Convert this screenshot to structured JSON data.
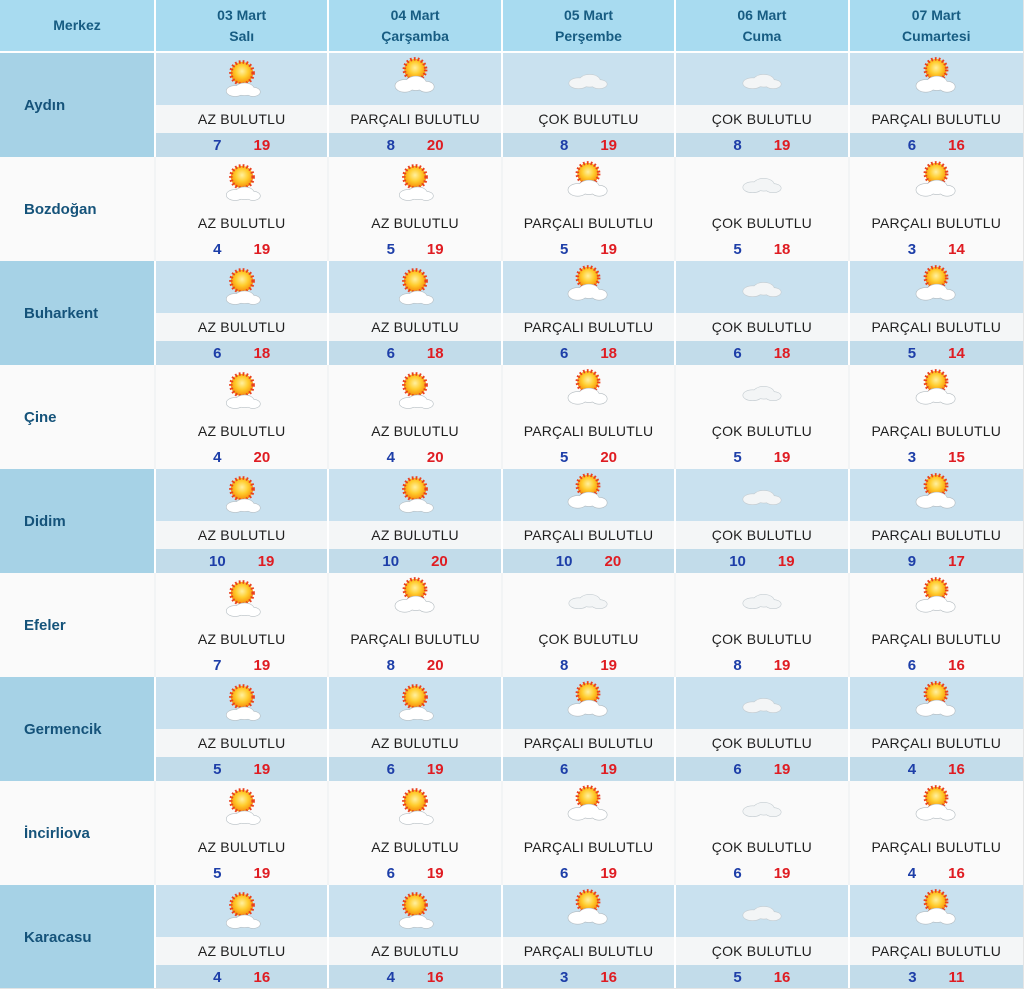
{
  "colors": {
    "header_bg": "#a8dbf0",
    "header_text": "#175c82",
    "row_blue_city_bg": "#a6d2e6",
    "row_blue_icon_bg": "#c9e1ef",
    "row_blue_condition_bg": "#f4f6f7",
    "row_blue_temp_bg": "#c2dcea",
    "row_white_bg": "#fafafa",
    "city_text": "#15537a",
    "condition_text": "#1f1f1f",
    "min_temp_color": "#1d3ea8",
    "max_temp_color": "#df1c22"
  },
  "icons": {
    "az_bulutlu": "sun-small-cloud",
    "parcali_bulutlu": "sun-cloud",
    "cok_bulutlu": "cloud"
  },
  "table": {
    "header": {
      "merkez_label": "Merkez",
      "days": [
        {
          "date": "03 Mart",
          "weekday": "Salı"
        },
        {
          "date": "04 Mart",
          "weekday": "Çarşamba"
        },
        {
          "date": "05 Mart",
          "weekday": "Perşembe"
        },
        {
          "date": "06 Mart",
          "weekday": "Cuma"
        },
        {
          "date": "07 Mart",
          "weekday": "Cumartesi"
        }
      ]
    },
    "rows": [
      {
        "city": "Aydın",
        "forecasts": [
          {
            "icon": "sun-small-cloud",
            "condition": "AZ BULUTLU",
            "min": 7,
            "max": 19
          },
          {
            "icon": "sun-cloud",
            "condition": "PARÇALI BULUTLU",
            "min": 8,
            "max": 20
          },
          {
            "icon": "cloud",
            "condition": "ÇOK BULUTLU",
            "min": 8,
            "max": 19
          },
          {
            "icon": "cloud",
            "condition": "ÇOK BULUTLU",
            "min": 8,
            "max": 19
          },
          {
            "icon": "sun-cloud",
            "condition": "PARÇALI BULUTLU",
            "min": 6,
            "max": 16
          }
        ]
      },
      {
        "city": "Bozdoğan",
        "forecasts": [
          {
            "icon": "sun-small-cloud",
            "condition": "AZ BULUTLU",
            "min": 4,
            "max": 19
          },
          {
            "icon": "sun-small-cloud",
            "condition": "AZ BULUTLU",
            "min": 5,
            "max": 19
          },
          {
            "icon": "sun-cloud",
            "condition": "PARÇALI BULUTLU",
            "min": 5,
            "max": 19
          },
          {
            "icon": "cloud",
            "condition": "ÇOK BULUTLU",
            "min": 5,
            "max": 18
          },
          {
            "icon": "sun-cloud",
            "condition": "PARÇALI BULUTLU",
            "min": 3,
            "max": 14
          }
        ]
      },
      {
        "city": "Buharkent",
        "forecasts": [
          {
            "icon": "sun-small-cloud",
            "condition": "AZ BULUTLU",
            "min": 6,
            "max": 18
          },
          {
            "icon": "sun-small-cloud",
            "condition": "AZ BULUTLU",
            "min": 6,
            "max": 18
          },
          {
            "icon": "sun-cloud",
            "condition": "PARÇALI BULUTLU",
            "min": 6,
            "max": 18
          },
          {
            "icon": "cloud",
            "condition": "ÇOK BULUTLU",
            "min": 6,
            "max": 18
          },
          {
            "icon": "sun-cloud",
            "condition": "PARÇALI BULUTLU",
            "min": 5,
            "max": 14
          }
        ]
      },
      {
        "city": "Çine",
        "forecasts": [
          {
            "icon": "sun-small-cloud",
            "condition": "AZ BULUTLU",
            "min": 4,
            "max": 20
          },
          {
            "icon": "sun-small-cloud",
            "condition": "AZ BULUTLU",
            "min": 4,
            "max": 20
          },
          {
            "icon": "sun-cloud",
            "condition": "PARÇALI BULUTLU",
            "min": 5,
            "max": 20
          },
          {
            "icon": "cloud",
            "condition": "ÇOK BULUTLU",
            "min": 5,
            "max": 19
          },
          {
            "icon": "sun-cloud",
            "condition": "PARÇALI BULUTLU",
            "min": 3,
            "max": 15
          }
        ]
      },
      {
        "city": "Didim",
        "forecasts": [
          {
            "icon": "sun-small-cloud",
            "condition": "AZ BULUTLU",
            "min": 10,
            "max": 19
          },
          {
            "icon": "sun-small-cloud",
            "condition": "AZ BULUTLU",
            "min": 10,
            "max": 20
          },
          {
            "icon": "sun-cloud",
            "condition": "PARÇALI BULUTLU",
            "min": 10,
            "max": 20
          },
          {
            "icon": "cloud",
            "condition": "ÇOK BULUTLU",
            "min": 10,
            "max": 19
          },
          {
            "icon": "sun-cloud",
            "condition": "PARÇALI BULUTLU",
            "min": 9,
            "max": 17
          }
        ]
      },
      {
        "city": "Efeler",
        "forecasts": [
          {
            "icon": "sun-small-cloud",
            "condition": "AZ BULUTLU",
            "min": 7,
            "max": 19
          },
          {
            "icon": "sun-cloud",
            "condition": "PARÇALI BULUTLU",
            "min": 8,
            "max": 20
          },
          {
            "icon": "cloud",
            "condition": "ÇOK BULUTLU",
            "min": 8,
            "max": 19
          },
          {
            "icon": "cloud",
            "condition": "ÇOK BULUTLU",
            "min": 8,
            "max": 19
          },
          {
            "icon": "sun-cloud",
            "condition": "PARÇALI BULUTLU",
            "min": 6,
            "max": 16
          }
        ]
      },
      {
        "city": "Germencik",
        "forecasts": [
          {
            "icon": "sun-small-cloud",
            "condition": "AZ BULUTLU",
            "min": 5,
            "max": 19
          },
          {
            "icon": "sun-small-cloud",
            "condition": "AZ BULUTLU",
            "min": 6,
            "max": 19
          },
          {
            "icon": "sun-cloud",
            "condition": "PARÇALI BULUTLU",
            "min": 6,
            "max": 19
          },
          {
            "icon": "cloud",
            "condition": "ÇOK BULUTLU",
            "min": 6,
            "max": 19
          },
          {
            "icon": "sun-cloud",
            "condition": "PARÇALI BULUTLU",
            "min": 4,
            "max": 16
          }
        ]
      },
      {
        "city": "İncirliova",
        "forecasts": [
          {
            "icon": "sun-small-cloud",
            "condition": "AZ BULUTLU",
            "min": 5,
            "max": 19
          },
          {
            "icon": "sun-small-cloud",
            "condition": "AZ BULUTLU",
            "min": 6,
            "max": 19
          },
          {
            "icon": "sun-cloud",
            "condition": "PARÇALI BULUTLU",
            "min": 6,
            "max": 19
          },
          {
            "icon": "cloud",
            "condition": "ÇOK BULUTLU",
            "min": 6,
            "max": 19
          },
          {
            "icon": "sun-cloud",
            "condition": "PARÇALI BULUTLU",
            "min": 4,
            "max": 16
          }
        ]
      },
      {
        "city": "Karacasu",
        "forecasts": [
          {
            "icon": "sun-small-cloud",
            "condition": "AZ BULUTLU",
            "min": 4,
            "max": 16
          },
          {
            "icon": "sun-small-cloud",
            "condition": "AZ BULUTLU",
            "min": 4,
            "max": 16
          },
          {
            "icon": "sun-cloud",
            "condition": "PARÇALI BULUTLU",
            "min": 3,
            "max": 16
          },
          {
            "icon": "cloud",
            "condition": "ÇOK BULUTLU",
            "min": 5,
            "max": 16
          },
          {
            "icon": "sun-cloud",
            "condition": "PARÇALI BULUTLU",
            "min": 3,
            "max": 11
          }
        ]
      }
    ]
  }
}
